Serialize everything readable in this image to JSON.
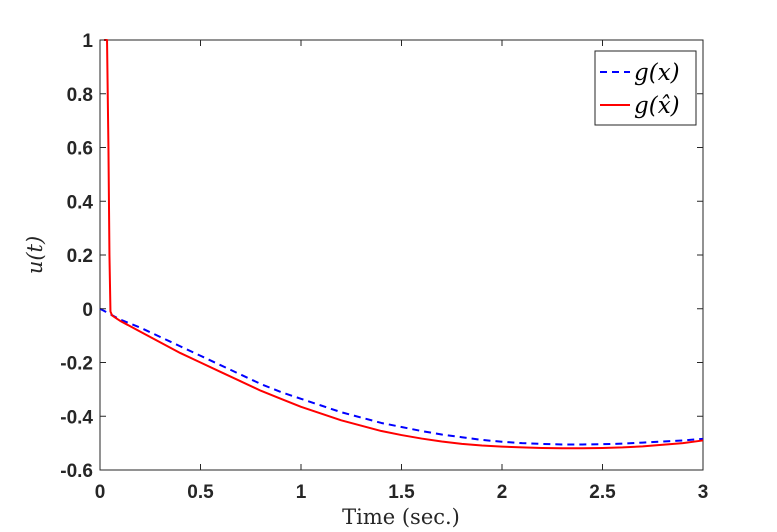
{
  "chart_data": {
    "type": "line",
    "title": "",
    "xlabel": "Time (sec.)",
    "ylabel": "u(t)",
    "xlim": [
      0,
      3
    ],
    "ylim": [
      -0.6,
      1
    ],
    "x_ticks": [
      0,
      0.5,
      1,
      1.5,
      2,
      2.5,
      3
    ],
    "x_tick_labels": [
      "0",
      "0.5",
      "1",
      "1.5",
      "2",
      "2.5",
      "3"
    ],
    "y_ticks": [
      -0.6,
      -0.4,
      -0.2,
      0,
      0.2,
      0.4,
      0.6,
      0.8,
      1
    ],
    "y_tick_labels": [
      "-0.6",
      "-0.4",
      "-0.2",
      "0",
      "0.2",
      "0.4",
      "0.6",
      "0.8",
      "1"
    ],
    "grid": false,
    "legend_position": "top-right",
    "series": [
      {
        "name": "g(x)",
        "color": "#0000ff",
        "dash": "dashed",
        "x": [
          0,
          0.05,
          0.1,
          0.2,
          0.3,
          0.4,
          0.5,
          0.6,
          0.7,
          0.8,
          0.9,
          1.0,
          1.1,
          1.2,
          1.3,
          1.4,
          1.5,
          1.6,
          1.7,
          1.8,
          1.9,
          2.0,
          2.1,
          2.2,
          2.3,
          2.4,
          2.5,
          2.6,
          2.7,
          2.8,
          2.9,
          3.0
        ],
        "y": [
          0,
          -0.02,
          -0.04,
          -0.07,
          -0.105,
          -0.14,
          -0.175,
          -0.21,
          -0.245,
          -0.28,
          -0.31,
          -0.335,
          -0.36,
          -0.385,
          -0.405,
          -0.425,
          -0.44,
          -0.455,
          -0.468,
          -0.478,
          -0.488,
          -0.495,
          -0.5,
          -0.503,
          -0.505,
          -0.505,
          -0.504,
          -0.502,
          -0.498,
          -0.494,
          -0.49,
          -0.484
        ]
      },
      {
        "name": "g(x̂)",
        "color": "#ff0000",
        "dash": "solid",
        "x": [
          0.02,
          0.025,
          0.035,
          0.042,
          0.047,
          0.052,
          0.06,
          0.08,
          0.1,
          0.2,
          0.3,
          0.4,
          0.5,
          0.6,
          0.7,
          0.8,
          0.9,
          1.0,
          1.1,
          1.2,
          1.3,
          1.4,
          1.5,
          1.6,
          1.7,
          1.8,
          1.9,
          2.0,
          2.1,
          2.2,
          2.3,
          2.4,
          2.5,
          2.6,
          2.7,
          2.8,
          2.9,
          3.0
        ],
        "y": [
          1.0,
          1.0,
          1.0,
          0.6,
          0.2,
          -0.01,
          -0.025,
          -0.035,
          -0.045,
          -0.085,
          -0.125,
          -0.165,
          -0.2,
          -0.235,
          -0.27,
          -0.305,
          -0.335,
          -0.365,
          -0.39,
          -0.415,
          -0.435,
          -0.455,
          -0.47,
          -0.483,
          -0.494,
          -0.503,
          -0.509,
          -0.513,
          -0.516,
          -0.518,
          -0.519,
          -0.519,
          -0.518,
          -0.516,
          -0.512,
          -0.506,
          -0.5,
          -0.49
        ]
      }
    ]
  }
}
